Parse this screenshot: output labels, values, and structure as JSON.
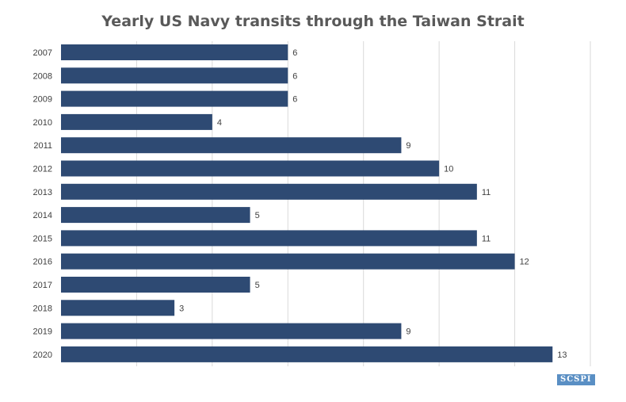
{
  "chart_data": {
    "type": "bar",
    "orientation": "horizontal",
    "title": "Yearly US Navy transits through the Taiwan Strait",
    "xlabel": "",
    "ylabel": "",
    "categories": [
      "2007",
      "2008",
      "2009",
      "2010",
      "2011",
      "2012",
      "2013",
      "2014",
      "2015",
      "2016",
      "2017",
      "2018",
      "2019",
      "2020"
    ],
    "values": [
      6,
      6,
      6,
      4,
      9,
      10,
      11,
      5,
      11,
      12,
      5,
      3,
      9,
      13
    ],
    "xlim": [
      0,
      14
    ],
    "grid": true,
    "data_labels": true,
    "bar_color": "#2e4a73",
    "grid_color": "#d9d9d9"
  },
  "watermark": "SCSPI"
}
